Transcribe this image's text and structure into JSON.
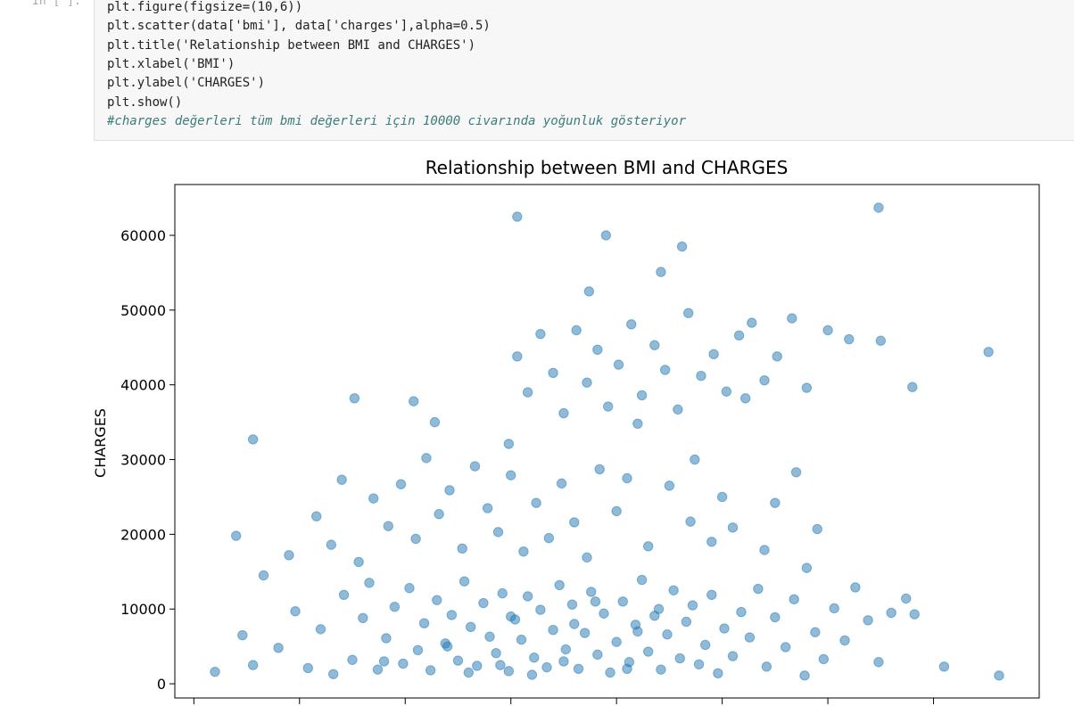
{
  "notebook": {
    "prompt": "In [ ]:",
    "code": [
      "plt.figure(figsize=(10,6))",
      "plt.scatter(data['bmi'], data['charges'],alpha=0.5)",
      "plt.title('Relationship between BMI and CHARGES')",
      "plt.xlabel('BMI')",
      "plt.ylabel('CHARGES')",
      "plt.show()",
      "#charges değerleri tüm bmi değerleri için 10000 civarında yoğunluk gösteriyor"
    ]
  },
  "chart_data": {
    "type": "scatter",
    "title": "Relationship between BMI and CHARGES",
    "y_label": "CHARGES",
    "color": "#1f77b4",
    "alpha": 0.5,
    "xlim": [
      14.1,
      55.0
    ],
    "xticks": [
      15,
      20,
      25,
      30,
      35,
      40,
      45,
      50
    ],
    "ylim": [
      -1900,
      66800
    ],
    "yticks": [
      0,
      10000,
      20000,
      30000,
      40000,
      50000,
      60000
    ],
    "x": [
      16.0,
      17.3,
      17.8,
      18.3,
      19.0,
      19.8,
      20.4,
      21.0,
      21.6,
      22.1,
      22.5,
      23.0,
      23.3,
      23.7,
      24.1,
      24.5,
      24.9,
      25.2,
      25.6,
      25.9,
      26.2,
      26.5,
      26.9,
      27.2,
      27.5,
      27.8,
      28.1,
      28.4,
      28.7,
      29.0,
      29.3,
      29.6,
      29.9,
      30.2,
      30.5,
      30.8,
      31.1,
      31.4,
      31.7,
      32.0,
      32.3,
      32.6,
      32.9,
      33.2,
      33.5,
      33.8,
      34.1,
      34.4,
      34.7,
      35.0,
      35.3,
      35.6,
      35.9,
      36.2,
      36.5,
      36.8,
      37.1,
      37.4,
      37.7,
      38.0,
      38.3,
      38.6,
      38.9,
      39.2,
      39.5,
      39.8,
      40.1,
      40.5,
      40.9,
      41.3,
      41.7,
      42.1,
      42.5,
      43.0,
      43.4,
      43.9,
      44.4,
      44.8,
      45.3,
      45.8,
      46.3,
      46.9,
      47.4,
      48.0,
      48.7,
      49.1,
      50.5,
      53.1,
      24.0,
      27.0,
      28.0,
      29.5,
      30.0,
      31.0,
      32.5,
      33.0,
      34.0,
      35.5,
      36.0,
      37.0,
      17.0,
      19.5,
      20.8,
      21.5,
      22.0,
      22.8,
      23.5,
      24.2,
      24.8,
      25.5,
      26.0,
      26.6,
      27.1,
      27.7,
      28.3,
      28.9,
      29.4,
      30.0,
      30.6,
      31.2,
      31.8,
      32.4,
      33.0,
      33.6,
      34.2,
      35.0,
      36.5,
      38.5,
      40.5,
      42.0,
      44.0,
      17.8,
      22.6,
      26.4,
      29.9,
      25.4,
      30.3,
      30.8,
      31.4,
      32.0,
      32.5,
      33.1,
      33.6,
      34.1,
      34.6,
      35.1,
      35.7,
      36.2,
      36.8,
      37.3,
      37.9,
      38.4,
      39.0,
      39.6,
      40.2,
      40.8,
      41.4,
      42.0,
      42.6,
      43.3,
      44.0,
      45.0,
      46.0,
      47.5,
      49.0,
      52.6,
      30.3,
      34.5,
      38.1,
      47.4,
      33.7,
      37.1,
      41.1,
      36.0,
      43.5,
      38.7,
      35.5,
      37.5,
      39.5,
      40.0,
      42.5,
      44.5
    ],
    "values": [
      1600,
      6500,
      2500,
      14500,
      4800,
      9700,
      2100,
      7300,
      1300,
      11900,
      3200,
      8800,
      13500,
      1900,
      6100,
      10300,
      2700,
      12800,
      4500,
      8100,
      1800,
      11200,
      5400,
      9200,
      3100,
      13700,
      7600,
      2400,
      10800,
      6300,
      4100,
      12100,
      1700,
      8600,
      5900,
      11700,
      3500,
      9900,
      2200,
      7200,
      13200,
      4600,
      10600,
      2000,
      6800,
      12300,
      3900,
      9400,
      1500,
      5600,
      11000,
      2900,
      7900,
      13900,
      4300,
      9100,
      1900,
      6600,
      12500,
      3400,
      8300,
      10500,
      2600,
      5200,
      11900,
      1400,
      7400,
      3700,
      9600,
      6200,
      12700,
      2300,
      8900,
      4900,
      11300,
      1100,
      6900,
      3300,
      10100,
      5800,
      12900,
      8500,
      2900,
      9500,
      11400,
      9300,
      2300,
      1100,
      3000,
      5000,
      1500,
      2500,
      9000,
      1200,
      3000,
      8000,
      11000,
      2000,
      7000,
      10000,
      19800,
      17200,
      22400,
      18600,
      27300,
      16300,
      24800,
      21100,
      26700,
      19400,
      30200,
      22700,
      25900,
      18100,
      29100,
      23500,
      20300,
      27900,
      17700,
      24200,
      19500,
      26800,
      21600,
      16900,
      28700,
      23100,
      18400,
      21700,
      20900,
      17900,
      15500,
      32700,
      38200,
      35000,
      32100,
      37800,
      43800,
      39000,
      46800,
      41600,
      36200,
      47300,
      40300,
      44700,
      37100,
      42700,
      48100,
      38600,
      45300,
      42000,
      36700,
      49600,
      41200,
      44100,
      39100,
      46600,
      48300,
      40600,
      43800,
      48900,
      39600,
      47300,
      46100,
      45900,
      39700,
      44400,
      62500,
      60000,
      58500,
      63700,
      52500,
      55100,
      38200,
      34800,
      28300,
      30000,
      27500,
      26500,
      19000,
      25000,
      24200,
      20700
    ]
  }
}
